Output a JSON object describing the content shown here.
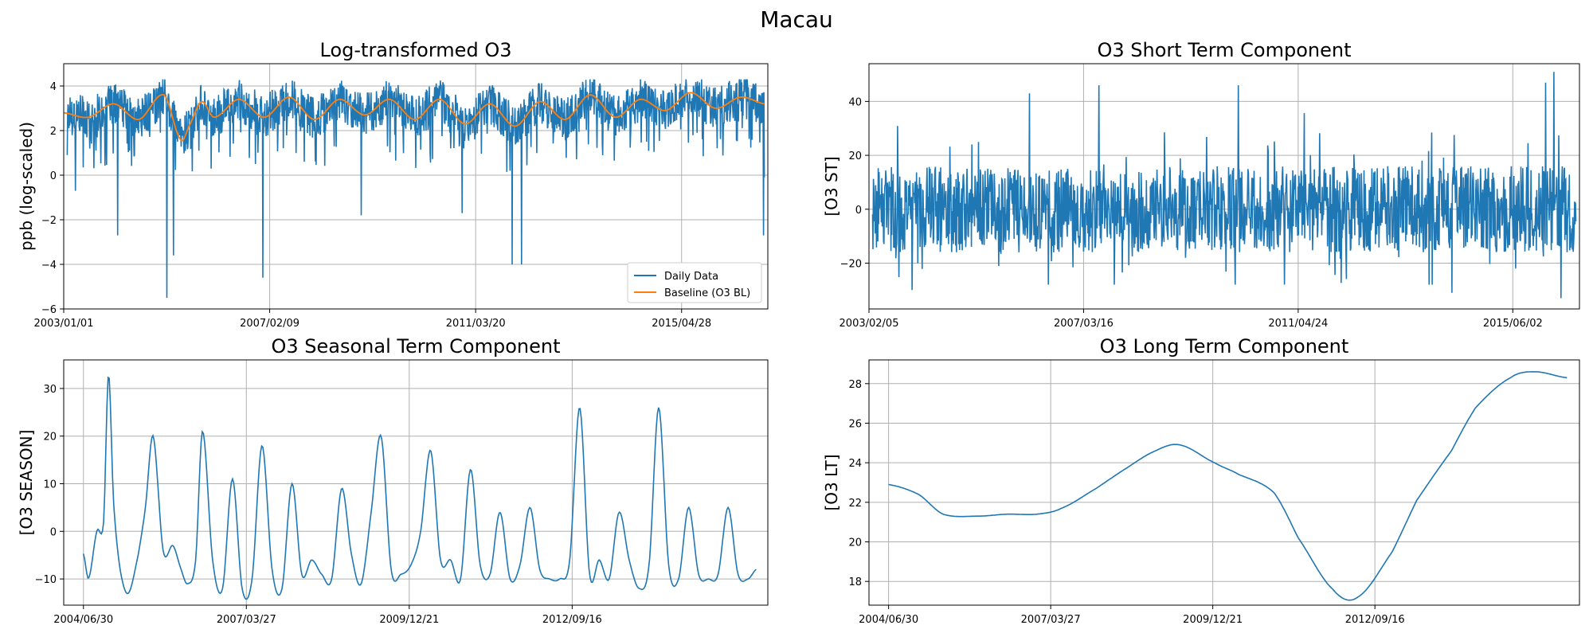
{
  "figure_title": "Macau",
  "colors": {
    "series": "#1f77b4",
    "baseline": "#ff7f0e",
    "grid": "#b0b0b0"
  },
  "chart_data": [
    {
      "id": "log-o3",
      "type": "line",
      "title": "Log-transformed O3",
      "xlabel": "",
      "ylabel": "ppb (log-scaled)",
      "x_range": [
        "2003-01-01",
        "2017-01-15"
      ],
      "xticks": [
        {
          "date": "2003-01-01",
          "label": "2003/01/01"
        },
        {
          "date": "2007-02-09",
          "label": "2007/02/09"
        },
        {
          "date": "2011-03-20",
          "label": "2011/03/20"
        },
        {
          "date": "2015-04-28",
          "label": "2015/04/28"
        }
      ],
      "ylim": [
        -6,
        5
      ],
      "yticks": [
        -6,
        -4,
        -2,
        0,
        2,
        4
      ],
      "grid": true,
      "legend": "lower-right",
      "series": [
        {
          "name": "Daily Data",
          "kind": "daily",
          "range": [
            -5.5,
            4.3
          ],
          "base": 3.0
        },
        {
          "name": "Baseline (O3 BL)",
          "kind": "baseline",
          "x": [
            "2003-01-01",
            "2003-07-01",
            "2004-01-01",
            "2004-07-01",
            "2005-01-01",
            "2005-05-01",
            "2005-07-01",
            "2005-10-01",
            "2006-01-01",
            "2006-07-01",
            "2007-01-01",
            "2007-07-01",
            "2008-01-01",
            "2008-07-01",
            "2009-01-01",
            "2009-07-01",
            "2010-01-01",
            "2010-07-01",
            "2011-01-01",
            "2011-07-01",
            "2012-01-01",
            "2012-07-01",
            "2013-01-01",
            "2013-07-01",
            "2014-01-01",
            "2014-07-01",
            "2015-01-01",
            "2015-07-01",
            "2016-01-01",
            "2016-07-01",
            "2016-12-20"
          ],
          "values": [
            2.8,
            2.6,
            3.2,
            2.5,
            3.6,
            1.6,
            2.2,
            3.3,
            2.6,
            3.4,
            2.6,
            3.5,
            2.5,
            3.4,
            2.7,
            3.4,
            2.5,
            3.4,
            2.3,
            3.2,
            2.2,
            3.3,
            2.5,
            3.6,
            2.6,
            3.4,
            2.9,
            3.7,
            3.0,
            3.5,
            3.2
          ]
        }
      ],
      "outliers": [
        {
          "x": "2003-01-20",
          "y": 0.9
        },
        {
          "x": "2003-03-25",
          "y": -0.7
        },
        {
          "x": "2004-01-28",
          "y": -2.7
        },
        {
          "x": "2005-01-20",
          "y": -5.5
        },
        {
          "x": "2005-03-10",
          "y": -3.6
        },
        {
          "x": "2006-12-20",
          "y": -4.6
        },
        {
          "x": "2008-12-05",
          "y": -1.8
        },
        {
          "x": "2010-12-10",
          "y": -1.7
        },
        {
          "x": "2011-12-10",
          "y": -4.0
        },
        {
          "x": "2012-02-15",
          "y": -4.0
        },
        {
          "x": "2016-12-12",
          "y": -2.7
        },
        {
          "x": "2017-01-05",
          "y": -0.1
        }
      ]
    },
    {
      "id": "short-term",
      "type": "line",
      "title": "O3 Short Term Component",
      "xlabel": "",
      "ylabel": "[O3 ST]",
      "x_range": [
        "2003-02-05",
        "2016-09-10"
      ],
      "xticks": [
        {
          "date": "2003-02-05",
          "label": "2003/02/05"
        },
        {
          "date": "2007-03-16",
          "label": "2007/03/16"
        },
        {
          "date": "2011-04-24",
          "label": "2011/04/24"
        },
        {
          "date": "2015-06-02",
          "label": "2015/06/02"
        }
      ],
      "ylim": [
        -37,
        54
      ],
      "yticks": [
        -20,
        0,
        20,
        40
      ],
      "grid": true,
      "series": [
        {
          "name": "",
          "kind": "noise",
          "range": [
            -33,
            51
          ],
          "base": 0
        }
      ],
      "outliers": [
        {
          "x": "2003-12-01",
          "y": -30
        },
        {
          "x": "2006-03-01",
          "y": 43
        },
        {
          "x": "2007-07-01",
          "y": 46
        },
        {
          "x": "2010-03-01",
          "y": 46
        },
        {
          "x": "2014-04-01",
          "y": -31
        },
        {
          "x": "2016-01-15",
          "y": 47
        },
        {
          "x": "2016-03-15",
          "y": 51
        },
        {
          "x": "2016-05-01",
          "y": -33
        }
      ]
    },
    {
      "id": "seasonal",
      "type": "line",
      "title": "O3 Seasonal Term Component",
      "xlabel": "",
      "ylabel": "[O3 SEASON]",
      "x_range": [
        "2004-03-01",
        "2015-12-31"
      ],
      "xticks": [
        {
          "date": "2004-06-30",
          "label": "2004/06/30"
        },
        {
          "date": "2007-03-27",
          "label": "2007/03/27"
        },
        {
          "date": "2009-12-21",
          "label": "2009/12/21"
        },
        {
          "date": "2012-09-16",
          "label": "2012/09/16"
        }
      ],
      "ylim": [
        -15.5,
        36
      ],
      "yticks": [
        -10,
        0,
        10,
        20,
        30
      ],
      "grid": true,
      "series": [
        {
          "name": "",
          "kind": "seasonal",
          "range": [
            -13,
            33
          ],
          "x": [
            "2004-06-30",
            "2004-08-01",
            "2004-09-20",
            "2004-11-01",
            "2004-12-01",
            "2005-01-01",
            "2005-02-10",
            "2005-04-01",
            "2005-06-01",
            "2005-07-15",
            "2005-09-01",
            "2005-11-01",
            "2006-01-01",
            "2006-02-20",
            "2006-04-01",
            "2006-05-20",
            "2006-07-01",
            "2006-09-01",
            "2006-11-01",
            "2007-01-01",
            "2007-03-01",
            "2007-05-01",
            "2007-07-01",
            "2007-09-01",
            "2007-11-01",
            "2008-01-01",
            "2008-03-01",
            "2008-05-01",
            "2008-07-01",
            "2008-09-01",
            "2008-11-01",
            "2009-01-01",
            "2009-03-01",
            "2009-05-01",
            "2009-07-01",
            "2009-09-01",
            "2009-11-01",
            "2010-01-01",
            "2010-03-01",
            "2010-05-01",
            "2010-07-01",
            "2010-09-01",
            "2010-11-01",
            "2011-01-01",
            "2011-03-01",
            "2011-05-01",
            "2011-07-01",
            "2011-09-01",
            "2011-11-01",
            "2012-01-01",
            "2012-03-01",
            "2012-05-01",
            "2012-07-01",
            "2012-09-01",
            "2012-11-01",
            "2013-01-01",
            "2013-03-01",
            "2013-05-01",
            "2013-07-01",
            "2013-09-01",
            "2013-11-01",
            "2014-01-01",
            "2014-03-01",
            "2014-05-01",
            "2014-07-01",
            "2014-09-01",
            "2014-11-01",
            "2015-01-01",
            "2015-03-01",
            "2015-05-01",
            "2015-07-01",
            "2015-09-01",
            "2015-10-20"
          ],
          "values": [
            -4.7,
            -9.8,
            0,
            2,
            33,
            6,
            -8,
            -13,
            -5,
            5,
            20,
            -4,
            -3,
            -8,
            -11,
            -6,
            21,
            -6,
            -12,
            11,
            -12,
            -10,
            18,
            -8,
            -12,
            10,
            -9,
            -6,
            -9,
            -10,
            9,
            -5,
            -11,
            4,
            20,
            -8,
            -9,
            -7,
            0,
            17,
            -6,
            -6,
            -10,
            13,
            -7,
            -9,
            4,
            -10,
            -7,
            5,
            -8,
            -10,
            -10,
            -6,
            26,
            -9,
            -6,
            -10,
            4,
            -6,
            -12,
            -7,
            26,
            -7,
            -10,
            5,
            -9,
            -10,
            -9,
            5,
            -9,
            -10,
            -8
          ]
        }
      ]
    },
    {
      "id": "long-term",
      "type": "line",
      "title": "O3 Long Term Component",
      "xlabel": "",
      "ylabel": "[O3 LT]",
      "x_range": [
        "2004-03-01",
        "2016-03-01"
      ],
      "xticks": [
        {
          "date": "2004-06-30",
          "label": "2004/06/30"
        },
        {
          "date": "2007-03-27",
          "label": "2007/03/27"
        },
        {
          "date": "2009-12-21",
          "label": "2009/12/21"
        },
        {
          "date": "2012-09-16",
          "label": "2012/09/16"
        }
      ],
      "ylim": [
        16.8,
        29.2
      ],
      "yticks": [
        18,
        20,
        22,
        24,
        26,
        28
      ],
      "grid": true,
      "series": [
        {
          "name": "",
          "kind": "smooth",
          "x": [
            "2004-06-30",
            "2005-01-01",
            "2005-06-01",
            "2006-01-01",
            "2006-07-01",
            "2007-01-01",
            "2007-06-01",
            "2008-01-01",
            "2008-07-01",
            "2009-01-01",
            "2009-06-01",
            "2010-01-01",
            "2010-06-01",
            "2011-01-01",
            "2011-06-01",
            "2012-01-01",
            "2012-06-01",
            "2013-01-01",
            "2013-06-01",
            "2014-01-01",
            "2014-06-01",
            "2015-01-01",
            "2015-06-01",
            "2015-12-15"
          ],
          "values": [
            22.9,
            22.4,
            21.4,
            21.3,
            21.4,
            21.4,
            21.7,
            22.7,
            23.7,
            24.6,
            24.9,
            24.0,
            23.4,
            22.5,
            20.2,
            17.6,
            17.2,
            19.5,
            22.1,
            24.6,
            26.8,
            28.3,
            28.6,
            28.3
          ]
        }
      ]
    }
  ]
}
